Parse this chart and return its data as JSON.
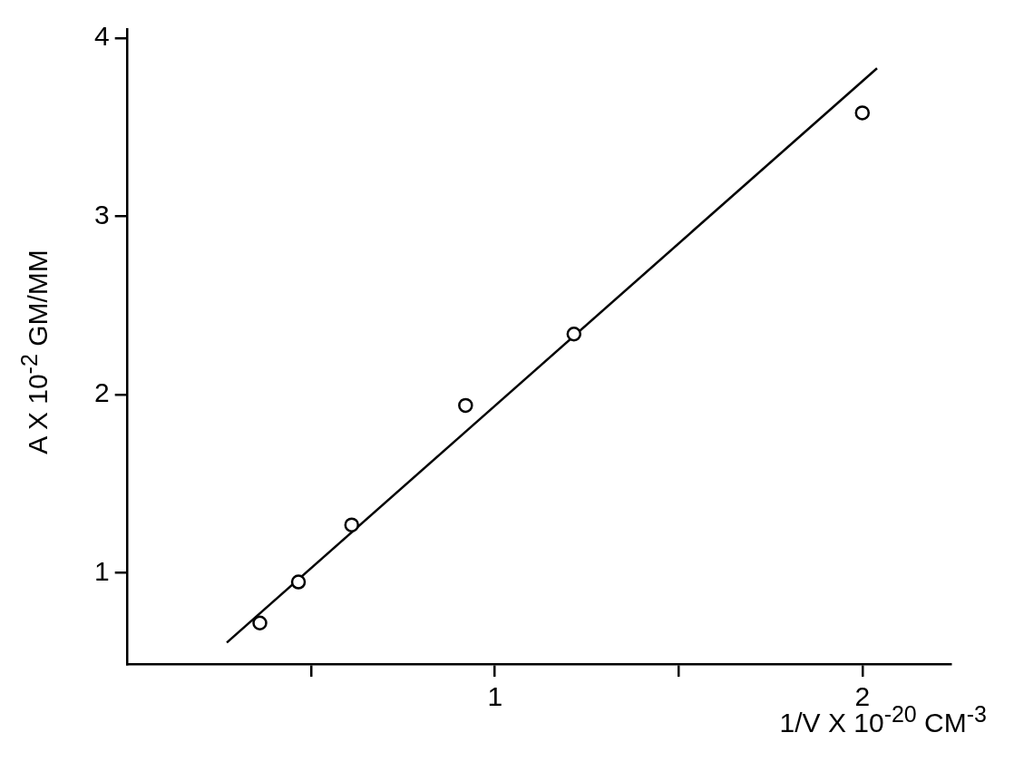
{
  "chart_data": {
    "type": "scatter",
    "xlabel": "1/V X 10$^{-20}$ CM$^{-3}$",
    "ylabel": "A X 10$^{-2}$ GM/MM",
    "series": [
      {
        "type": "scatter",
        "color": "#000000",
        "marker": "circle",
        "x": [
          0.36,
          0.465,
          0.61,
          0.92,
          1.215,
          2.0
        ],
        "values": [
          0.72,
          0.95,
          1.27,
          1.94,
          2.34,
          3.58
        ]
      },
      {
        "type": "line",
        "color": "#000000",
        "marker": "none",
        "line_style": "solid",
        "x": [
          0.27,
          2.04
        ],
        "values": [
          0.61,
          3.83
        ]
      }
    ],
    "xlim": [
      0,
      2.24
    ],
    "ylim": [
      0.49,
      4.05
    ],
    "xticks": [
      {
        "value": 0.5,
        "label": null
      },
      1,
      {
        "value": 1.5,
        "label": null
      },
      2
    ],
    "yticks": [
      1,
      2,
      3,
      4
    ],
    "grid": false,
    "legend": false
  }
}
